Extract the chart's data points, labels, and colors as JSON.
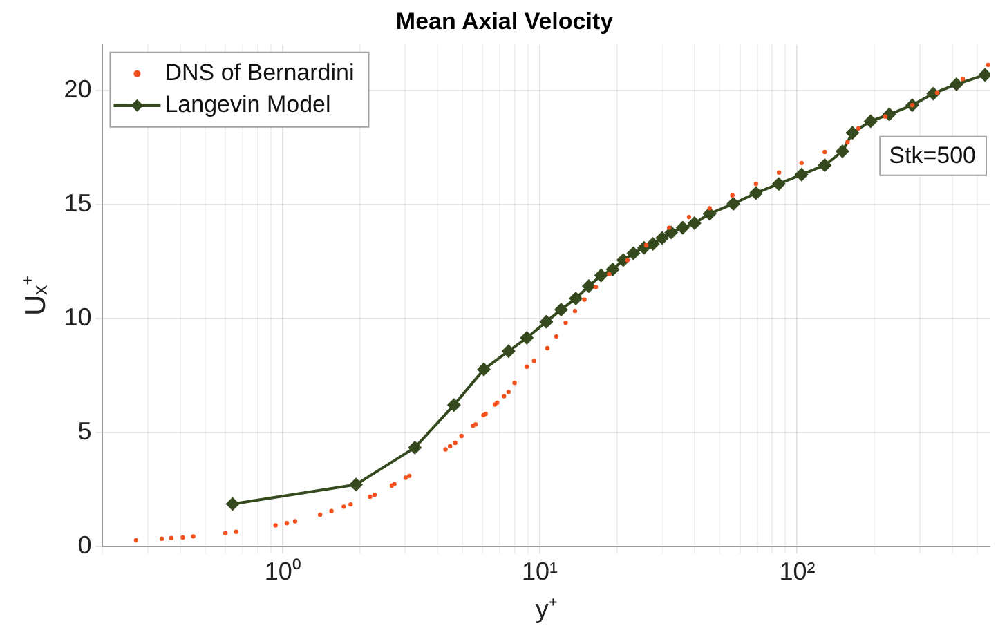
{
  "chart_data": {
    "type": "scatter",
    "title": "Mean Axial Velocity",
    "xlabel": "y⁺",
    "ylabel": "Uₓ⁺",
    "log": "x",
    "grid": true,
    "legend": "top left",
    "annotations": [
      "Stk=500"
    ],
    "xlim": [
      0.2,
      560
    ],
    "ylim": [
      0,
      22
    ],
    "xticks": [
      {
        "value": 0.2,
        "label": null
      },
      {
        "value": 0.3,
        "label": null
      },
      {
        "value": 0.4,
        "label": null
      },
      {
        "value": 0.5,
        "label": null
      },
      {
        "value": 0.6,
        "label": null
      },
      {
        "value": 0.7,
        "label": null
      },
      {
        "value": 0.8,
        "label": null
      },
      {
        "value": 0.9,
        "label": null
      },
      {
        "value": 1,
        "label": "10⁰"
      },
      {
        "value": 2,
        "label": null
      },
      {
        "value": 3,
        "label": null
      },
      {
        "value": 4,
        "label": null
      },
      {
        "value": 5,
        "label": null
      },
      {
        "value": 6,
        "label": null
      },
      {
        "value": 7,
        "label": null
      },
      {
        "value": 8,
        "label": null
      },
      {
        "value": 9,
        "label": null
      },
      {
        "value": 10,
        "label": "10¹"
      },
      {
        "value": 20,
        "label": null
      },
      {
        "value": 30,
        "label": null
      },
      {
        "value": 40,
        "label": null
      },
      {
        "value": 50,
        "label": null
      },
      {
        "value": 60,
        "label": null
      },
      {
        "value": 70,
        "label": null
      },
      {
        "value": 80,
        "label": null
      },
      {
        "value": 90,
        "label": null
      },
      {
        "value": 100,
        "label": "10²"
      },
      {
        "value": 200,
        "label": null
      },
      {
        "value": 300,
        "label": null
      },
      {
        "value": 400,
        "label": null
      },
      {
        "value": 500,
        "label": null
      }
    ],
    "yticks": [
      0,
      5,
      10,
      15,
      20
    ],
    "series": [
      {
        "name": "DNS of Bernardini",
        "type": "scatter",
        "marker": "circle",
        "color": "#f4511e",
        "x": [
          0.27,
          0.34,
          0.37,
          0.41,
          0.45,
          0.6,
          0.66,
          0.94,
          1.04,
          1.12,
          1.4,
          1.55,
          1.73,
          1.84,
          2.19,
          2.28,
          2.66,
          2.72,
          3.01,
          3.11,
          4.3,
          4.48,
          4.69,
          4.96,
          5.5,
          5.63,
          6.04,
          6.16,
          6.69,
          6.83,
          7.26,
          7.56,
          7.98,
          8.9,
          9.5,
          10.7,
          11.6,
          12.6,
          13.7,
          14.9,
          16.5,
          18.6,
          21.9,
          25.9,
          31.8,
          38,
          45.7,
          56,
          69.2,
          85,
          104,
          128,
          157,
          173,
          220,
          280,
          350,
          440,
          552
        ],
        "values": [
          0.28,
          0.35,
          0.38,
          0.4,
          0.45,
          0.59,
          0.65,
          0.93,
          1.03,
          1.11,
          1.4,
          1.56,
          1.75,
          1.85,
          2.19,
          2.27,
          2.68,
          2.74,
          3.02,
          3.1,
          4.26,
          4.4,
          4.55,
          4.85,
          5.3,
          5.36,
          5.76,
          5.82,
          6.23,
          6.31,
          6.59,
          6.78,
          7.18,
          7.89,
          8.14,
          8.7,
          9.21,
          9.82,
          10.33,
          10.83,
          11.38,
          11.95,
          12.56,
          13.21,
          13.98,
          14.45,
          14.83,
          15.4,
          15.9,
          16.4,
          16.82,
          17.3,
          17.73,
          18.34,
          18.85,
          19.35,
          19.9,
          20.5,
          21.12
        ]
      },
      {
        "name": "Langevin Model",
        "type": "line",
        "marker": "diamond",
        "line_style": "solid",
        "color": "#354a1e",
        "x": [
          0.64,
          1.93,
          3.27,
          4.64,
          6.06,
          7.56,
          8.9,
          10.6,
          12.1,
          13.8,
          15.5,
          17.3,
          19.2,
          21.1,
          23.1,
          25.4,
          27.5,
          29.9,
          32.4,
          35.9,
          39.9,
          45.7,
          56.5,
          69.2,
          84.8,
          104,
          128,
          150,
          164,
          193,
          228,
          280,
          338,
          416,
          537
        ],
        "values": [
          1.87,
          2.72,
          4.34,
          6.21,
          7.77,
          8.57,
          9.15,
          9.86,
          10.39,
          10.88,
          11.42,
          11.89,
          12.15,
          12.56,
          12.86,
          13.1,
          13.27,
          13.53,
          13.77,
          13.98,
          14.18,
          14.59,
          15.03,
          15.5,
          15.9,
          16.31,
          16.72,
          17.33,
          18.14,
          18.65,
          18.95,
          19.35,
          19.86,
          20.27,
          20.68
        ]
      }
    ]
  }
}
